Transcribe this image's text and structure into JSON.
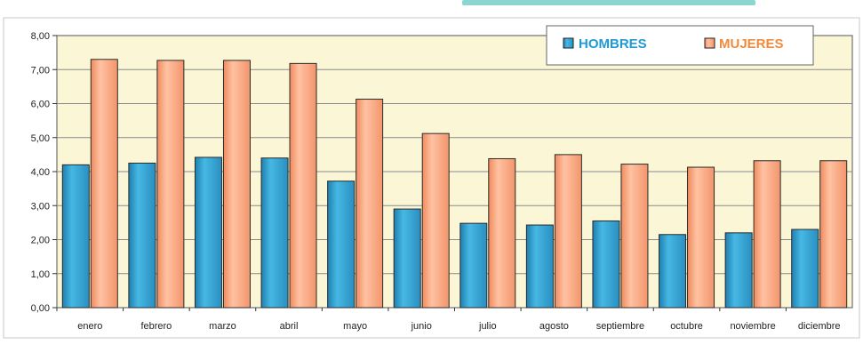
{
  "chart_data": {
    "type": "bar",
    "categories": [
      "enero",
      "febrero",
      "marzo",
      "abril",
      "mayo",
      "junio",
      "julio",
      "agosto",
      "septiembre",
      "octubre",
      "noviembre",
      "diciembre"
    ],
    "series": [
      {
        "name": "HOMBRES",
        "color": "#3aa4cf",
        "values": [
          4.2,
          4.25,
          4.42,
          4.4,
          3.72,
          2.9,
          2.48,
          2.43,
          2.55,
          2.15,
          2.2,
          2.3
        ]
      },
      {
        "name": "MUJERES",
        "color": "#f7a27c",
        "values": [
          7.3,
          7.27,
          7.27,
          7.18,
          6.13,
          5.12,
          4.38,
          4.5,
          4.22,
          4.13,
          4.32,
          4.32
        ]
      }
    ],
    "ylim": [
      0,
      8
    ],
    "yticks": [
      "0,00",
      "1,00",
      "2,00",
      "3,00",
      "4,00",
      "5,00",
      "6,00",
      "7,00",
      "8,00"
    ],
    "grid": true,
    "legend_position": "top-right",
    "colors": {
      "plot_background": "#fbf7d6",
      "legend_hombres_text": "#1f9ad6",
      "legend_mujeres_text": "#f08a3c",
      "top_text": "#2bb5a6"
    }
  }
}
